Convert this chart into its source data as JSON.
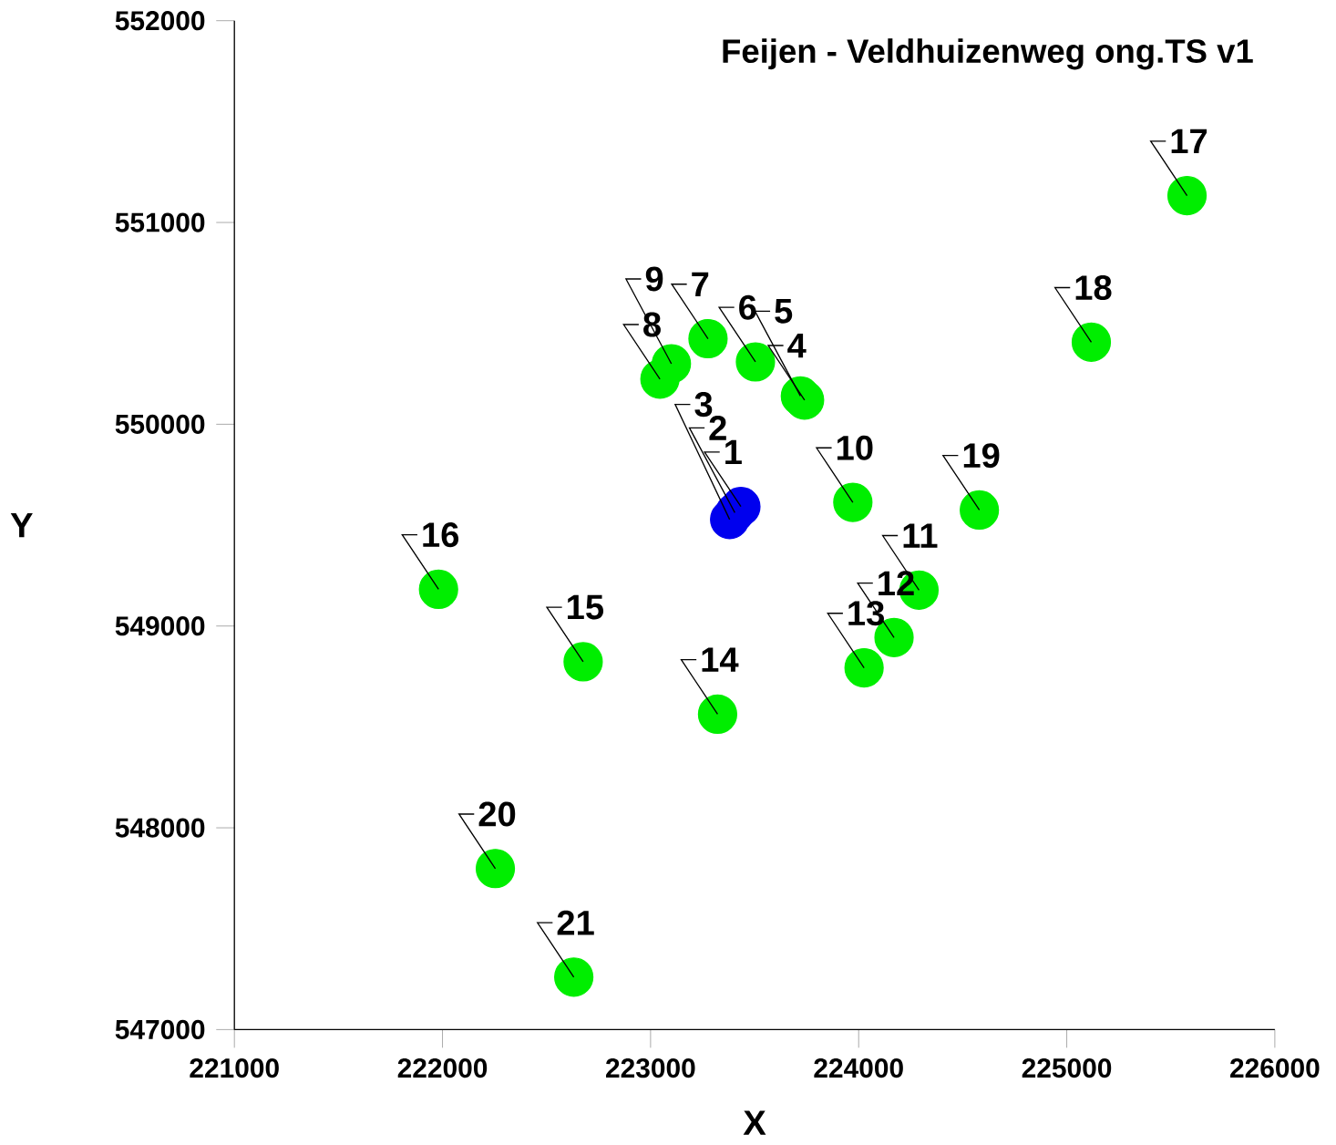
{
  "chart_data": {
    "type": "scatter",
    "title": "Feijen - Veldhuizenweg ong.TS v1",
    "xlabel": "X",
    "ylabel": "Y",
    "xlim": [
      221000,
      226000
    ],
    "ylim": [
      547000,
      552000
    ],
    "xticks": [
      221000,
      222000,
      223000,
      224000,
      225000,
      226000
    ],
    "yticks": [
      547000,
      548000,
      549000,
      550000,
      551000,
      552000
    ],
    "marker": "circle",
    "grid": false,
    "series": [
      {
        "color": "#0000ee",
        "x": [
          223434,
          223405,
          223380
        ],
        "values": [
          549592,
          549562,
          549528
        ]
      },
      {
        "color": "#00ee00",
        "x": [
          223740,
          223720,
          223504,
          223276,
          223045,
          223100,
          223972,
          224290,
          224170,
          224026,
          223322,
          222676,
          221981,
          225578,
          225118,
          224580,
          222254,
          222631
        ],
        "values": [
          550120,
          550140,
          550309,
          550424,
          550224,
          550300,
          549613,
          549178,
          548943,
          548793,
          548563,
          548823,
          549182,
          551133,
          550407,
          549575,
          547798,
          547260
        ]
      }
    ],
    "annotations": [
      {
        "text": "1",
        "x": 223434,
        "y": 549592
      },
      {
        "text": "2",
        "x": 223405,
        "y": 549562
      },
      {
        "text": "3",
        "x": 223380,
        "y": 549528
      },
      {
        "text": "4",
        "x": 223740,
        "y": 550120
      },
      {
        "text": "5",
        "x": 223720,
        "y": 550140
      },
      {
        "text": "6",
        "x": 223504,
        "y": 550309
      },
      {
        "text": "7",
        "x": 223276,
        "y": 550424
      },
      {
        "text": "8",
        "x": 223045,
        "y": 550224
      },
      {
        "text": "9",
        "x": 223100,
        "y": 550300
      },
      {
        "text": "10",
        "x": 223972,
        "y": 549613
      },
      {
        "text": "11",
        "x": 224290,
        "y": 549178
      },
      {
        "text": "12",
        "x": 224170,
        "y": 548943
      },
      {
        "text": "13",
        "x": 224026,
        "y": 548793
      },
      {
        "text": "14",
        "x": 223322,
        "y": 548563
      },
      {
        "text": "15",
        "x": 222676,
        "y": 548823
      },
      {
        "text": "16",
        "x": 221981,
        "y": 549182
      },
      {
        "text": "17",
        "x": 225578,
        "y": 551133
      },
      {
        "text": "18",
        "x": 225118,
        "y": 550407
      },
      {
        "text": "19",
        "x": 224580,
        "y": 549575
      },
      {
        "text": "20",
        "x": 222254,
        "y": 547798
      },
      {
        "text": "21",
        "x": 222631,
        "y": 547260
      }
    ]
  }
}
